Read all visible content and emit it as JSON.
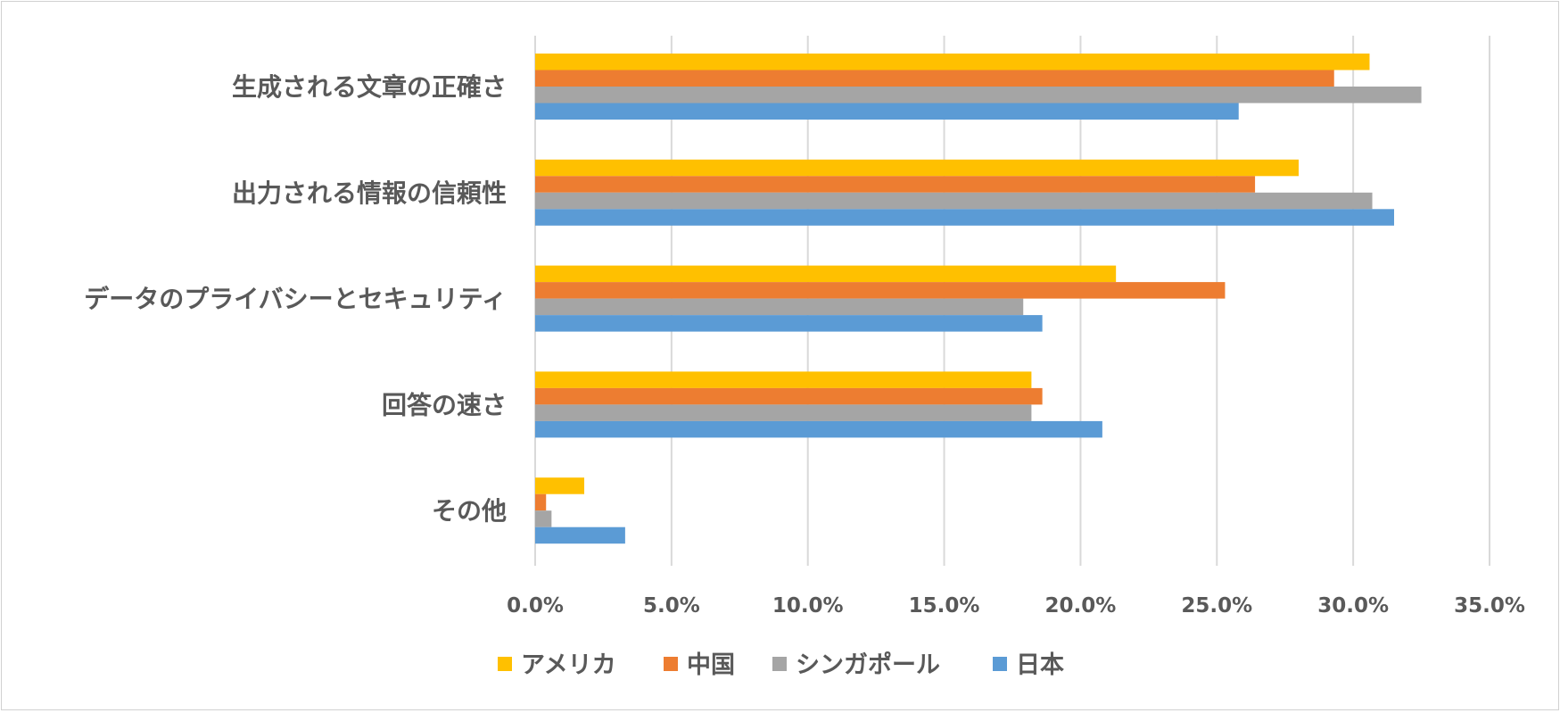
{
  "chart_data": {
    "type": "bar",
    "orientation": "horizontal",
    "title": "",
    "xlabel": "",
    "ylabel": "",
    "categories": [
      "生成される文章の正確さ",
      "出力される情報の信頼性",
      "データのプライバシーとセキュリティ",
      "回答の速さ",
      "その他"
    ],
    "xlim": [
      0,
      35
    ],
    "x_ticks": [
      0,
      5,
      10,
      15,
      20,
      25,
      30,
      35
    ],
    "x_tick_labels": [
      "0.0%",
      "5.0%",
      "10.0%",
      "15.0%",
      "20.0%",
      "25.0%",
      "30.0%",
      "35.0%"
    ],
    "grid": "vertical major gridlines",
    "legend_position": "bottom",
    "series": [
      {
        "name": "アメリカ",
        "color": "#FFC000",
        "values": [
          30.6,
          28.0,
          21.3,
          18.2,
          1.8
        ]
      },
      {
        "name": "中国",
        "color": "#ED7D31",
        "values": [
          29.3,
          26.4,
          25.3,
          18.6,
          0.4
        ]
      },
      {
        "name": "シンガポール",
        "color": "#A5A5A5",
        "values": [
          32.5,
          30.7,
          17.9,
          18.2,
          0.6
        ]
      },
      {
        "name": "日本",
        "color": "#5B9BD5",
        "values": [
          25.8,
          31.5,
          18.6,
          20.8,
          3.3
        ]
      }
    ]
  }
}
